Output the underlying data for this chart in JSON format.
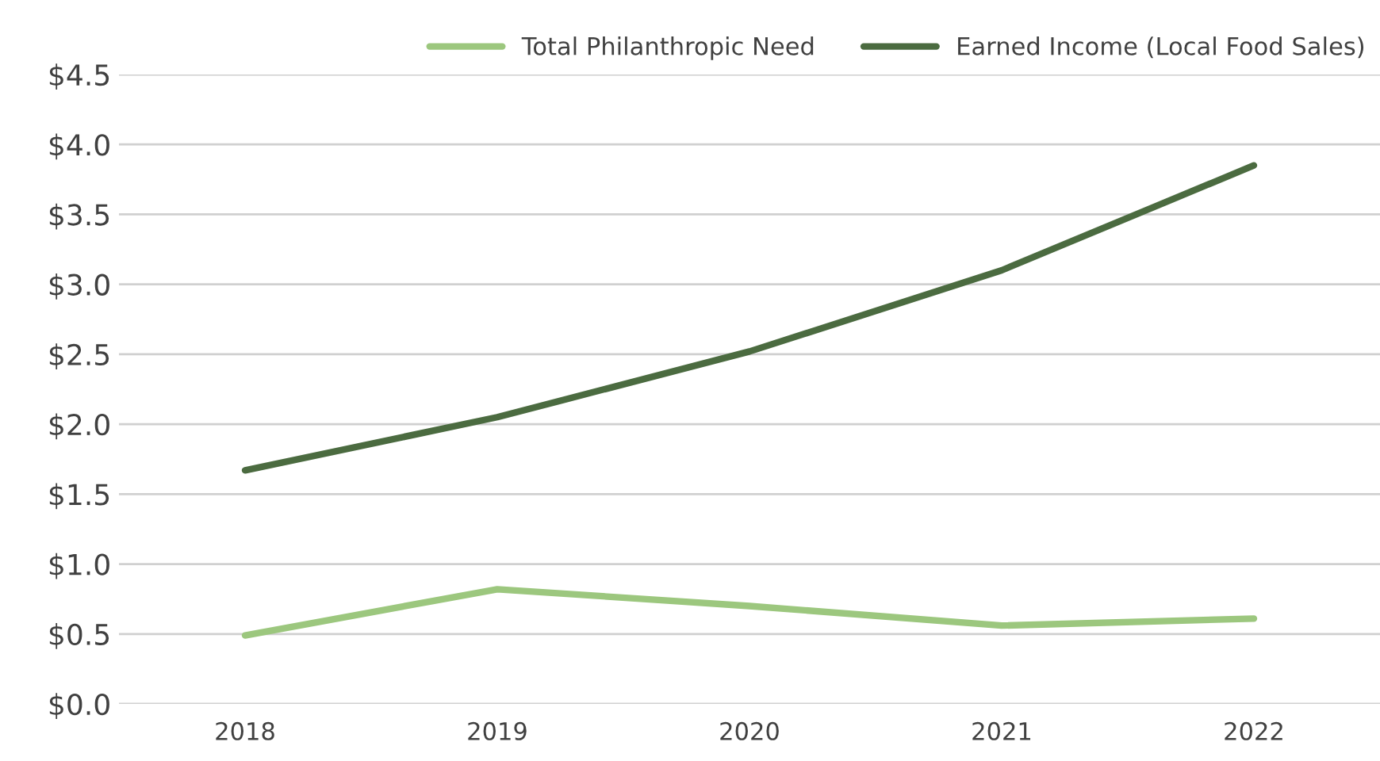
{
  "chart_data": {
    "type": "line",
    "categories": [
      "2018",
      "2019",
      "2020",
      "2021",
      "2022"
    ],
    "series": [
      {
        "name": "Total Philanthropic Need",
        "color": "#9cc77e",
        "values": [
          0.49,
          0.82,
          0.7,
          0.56,
          0.61
        ]
      },
      {
        "name": "Earned Income (Local Food Sales)",
        "color": "#4b6b40",
        "values": [
          1.67,
          2.05,
          2.52,
          3.1,
          3.85
        ]
      }
    ],
    "ylim": [
      0,
      4.5
    ],
    "yticks": [
      {
        "value": 0,
        "label": "$0.0"
      },
      {
        "value": 0.5,
        "label": "$0.5"
      },
      {
        "value": 1,
        "label": "$1.0"
      },
      {
        "value": 1.5,
        "label": "$1.5"
      },
      {
        "value": 2,
        "label": "$2.0"
      },
      {
        "value": 2.5,
        "label": "$2.5"
      },
      {
        "value": 3,
        "label": "$3.0"
      },
      {
        "value": 3.5,
        "label": "$3.5"
      },
      {
        "value": 4,
        "label": "$4.0"
      },
      {
        "value": 4.5,
        "label": "$4.5"
      }
    ],
    "grid": "y",
    "legend": "top",
    "marker": "none",
    "line_style": "solid"
  }
}
